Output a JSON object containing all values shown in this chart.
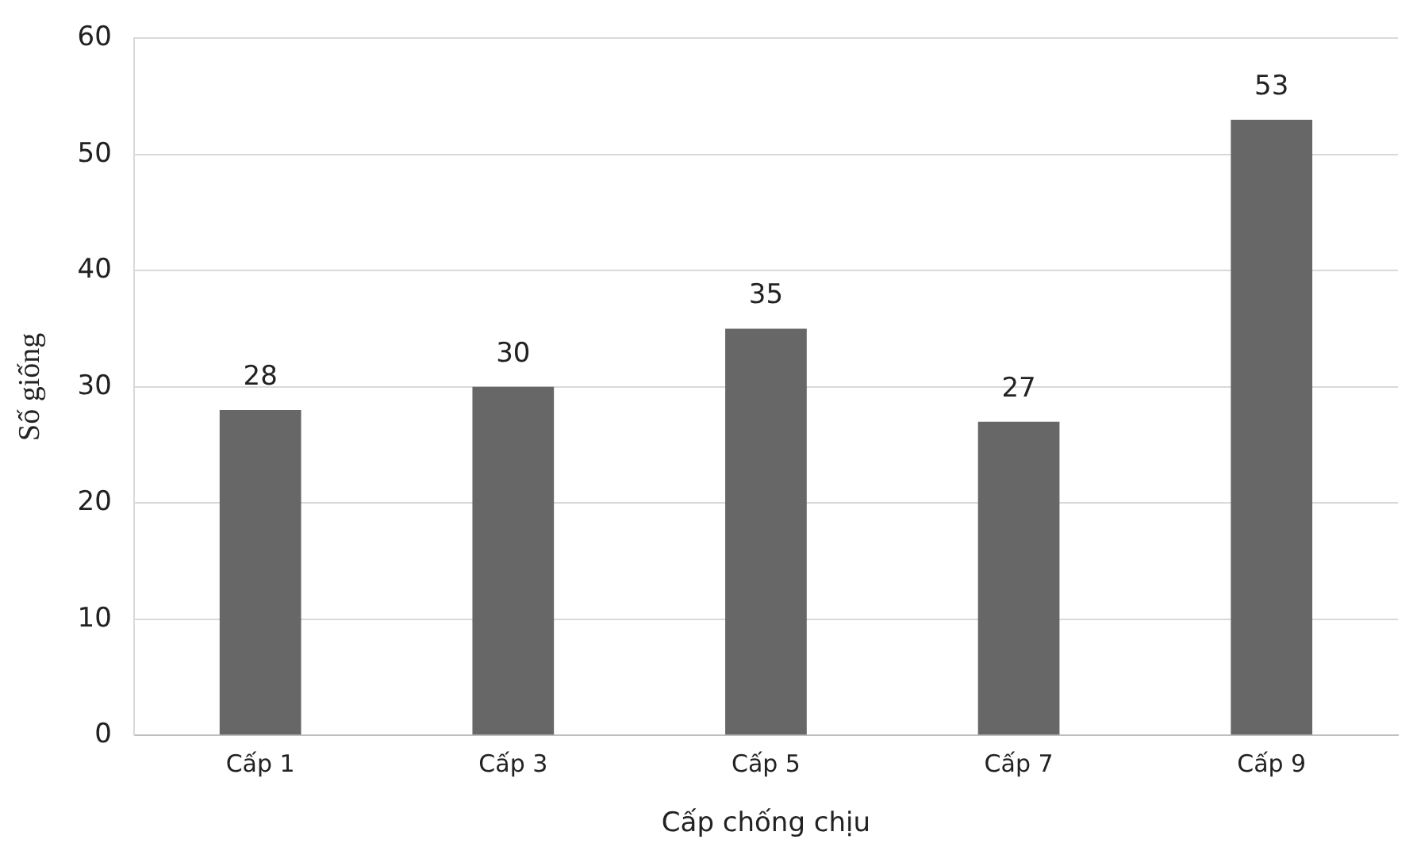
{
  "chart_data": {
    "type": "bar",
    "xlabel": "Cấp chống chịu",
    "ylabel": "Số giống",
    "categories": [
      "Cấp 1",
      "Cấp 3",
      "Cấp 5",
      "Cấp 7",
      "Cấp 9"
    ],
    "values": [
      28,
      30,
      35,
      27,
      53
    ],
    "color": "#676767",
    "ylim": [
      0,
      60
    ],
    "yticks": [
      0,
      10,
      20,
      30,
      40,
      50,
      60
    ],
    "grid": "y",
    "data_labels": true,
    "legend": false
  }
}
